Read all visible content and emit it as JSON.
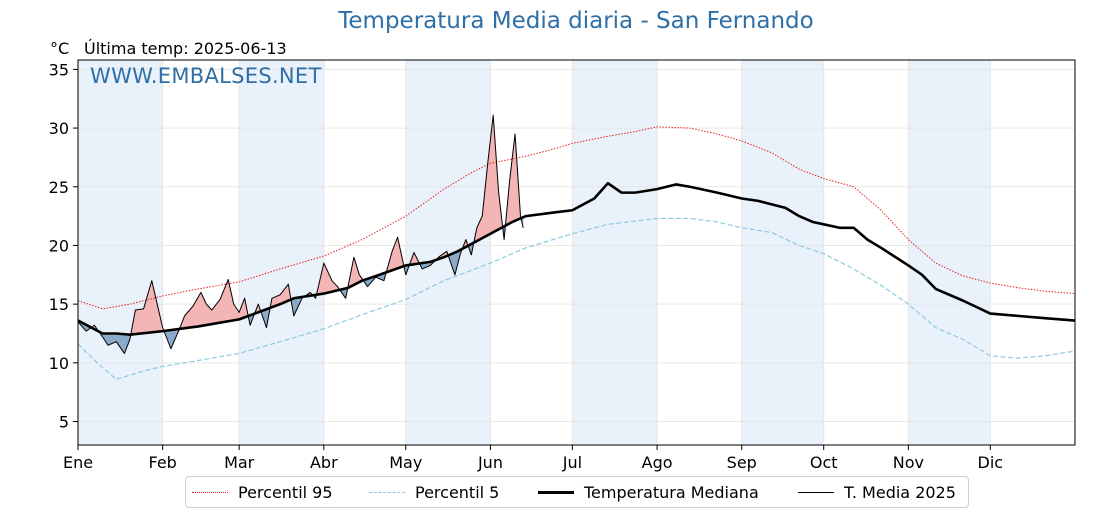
{
  "header": {
    "title": "Temperatura Media diaria - San Fernando",
    "unit": "°C",
    "last_temp": "Última temp: 2025-06-13",
    "watermark": "WWW.EMBALSES.NET"
  },
  "colors": {
    "p95": "#e8231e",
    "p5": "#8fc9e0",
    "median": "#000000",
    "year": "#000000",
    "above_fill": "#f3b5b5",
    "below_fill": "#8aaac9",
    "month_shade": "#e9f1fa",
    "grid": "#e6e6e6",
    "title": "#2f6fa6"
  },
  "chart_data": {
    "type": "line",
    "title": "Temperatura Media diaria - San Fernando",
    "ylabel": "°C",
    "ylim": [
      3,
      35.8
    ],
    "xlim": [
      1,
      366
    ],
    "yticks": [
      5,
      10,
      15,
      20,
      25,
      30,
      35
    ],
    "grid": true,
    "legend_position": "bottom",
    "x_unit": "day of year",
    "months": [
      {
        "label": "Ene",
        "day": 1
      },
      {
        "label": "Feb",
        "day": 32
      },
      {
        "label": "Mar",
        "day": 60
      },
      {
        "label": "Abr",
        "day": 91
      },
      {
        "label": "May",
        "day": 121
      },
      {
        "label": "Jun",
        "day": 152
      },
      {
        "label": "Jul",
        "day": 182
      },
      {
        "label": "Ago",
        "day": 213
      },
      {
        "label": "Sep",
        "day": 244
      },
      {
        "label": "Oct",
        "day": 274
      },
      {
        "label": "Nov",
        "day": 305
      },
      {
        "label": "Dic",
        "day": 335
      }
    ],
    "series": [
      {
        "name": "Percentil 95",
        "style": "dotted",
        "x": [
          1,
          10,
          20,
          32,
          45,
          60,
          75,
          91,
          105,
          121,
          135,
          145,
          152,
          165,
          175,
          182,
          195,
          205,
          213,
          225,
          235,
          244,
          255,
          265,
          274,
          285,
          295,
          305,
          315,
          325,
          335,
          345,
          355,
          366
        ],
        "y": [
          15.3,
          14.6,
          15.0,
          15.7,
          16.3,
          16.9,
          18.0,
          19.1,
          20.5,
          22.5,
          24.8,
          26.2,
          27.0,
          27.6,
          28.2,
          28.7,
          29.3,
          29.7,
          30.1,
          30.0,
          29.5,
          28.9,
          27.9,
          26.5,
          25.7,
          25.0,
          23.0,
          20.5,
          18.5,
          17.4,
          16.8,
          16.4,
          16.1,
          15.9
        ]
      },
      {
        "name": "Percentil 5",
        "style": "dashed",
        "x": [
          1,
          8,
          15,
          25,
          32,
          45,
          60,
          75,
          91,
          105,
          121,
          135,
          152,
          165,
          182,
          195,
          213,
          225,
          235,
          244,
          255,
          265,
          274,
          285,
          295,
          305,
          315,
          325,
          335,
          345,
          355,
          366
        ],
        "y": [
          11.6,
          10.0,
          8.6,
          9.3,
          9.7,
          10.2,
          10.8,
          11.8,
          12.9,
          14.1,
          15.4,
          17.0,
          18.5,
          19.8,
          21.0,
          21.8,
          22.3,
          22.3,
          22.0,
          21.5,
          21.1,
          20.0,
          19.3,
          18.0,
          16.6,
          15.0,
          13.0,
          12.0,
          10.6,
          10.4,
          10.6,
          11.0
        ]
      },
      {
        "name": "Temperatura Mediana",
        "style": "solid-thick",
        "x": [
          1,
          10,
          15,
          20,
          32,
          45,
          60,
          75,
          80,
          91,
          100,
          105,
          115,
          121,
          130,
          135,
          140,
          152,
          160,
          165,
          175,
          182,
          190,
          195,
          200,
          205,
          213,
          220,
          225,
          235,
          244,
          250,
          255,
          260,
          265,
          270,
          274,
          280,
          285,
          290,
          295,
          305,
          310,
          315,
          325,
          335,
          345,
          355,
          366
        ],
        "y": [
          13.6,
          12.5,
          12.5,
          12.4,
          12.7,
          13.1,
          13.7,
          15.0,
          15.5,
          15.9,
          16.4,
          17.0,
          17.8,
          18.3,
          18.6,
          19.0,
          19.5,
          21.0,
          22.0,
          22.5,
          22.8,
          23.0,
          24.0,
          25.3,
          24.5,
          24.5,
          24.8,
          25.2,
          25.0,
          24.5,
          24.0,
          23.8,
          23.5,
          23.2,
          22.5,
          22.0,
          21.8,
          21.5,
          21.5,
          20.5,
          19.8,
          18.3,
          17.5,
          16.3,
          15.3,
          14.2,
          14.0,
          13.8,
          13.6
        ]
      },
      {
        "name": "T. Media 2025",
        "style": "solid-thin",
        "x": [
          1,
          4,
          7,
          10,
          12,
          15,
          18,
          20,
          22,
          25,
          28,
          32,
          35,
          38,
          40,
          43,
          46,
          48,
          50,
          53,
          56,
          58,
          60,
          62,
          64,
          67,
          70,
          72,
          75,
          78,
          80,
          83,
          86,
          88,
          91,
          94,
          96,
          99,
          102,
          104,
          107,
          110,
          113,
          116,
          118,
          121,
          124,
          127,
          130,
          133,
          136,
          139,
          141,
          143,
          145,
          147,
          149,
          151,
          153,
          155,
          157,
          159,
          161,
          163,
          164
        ],
        "y": [
          13.5,
          12.7,
          13.2,
          12.2,
          11.5,
          11.8,
          10.8,
          12.0,
          14.5,
          14.6,
          17.0,
          13.0,
          11.2,
          12.8,
          14.0,
          14.8,
          16.0,
          15.0,
          14.5,
          15.4,
          17.1,
          15.0,
          14.3,
          15.5,
          13.2,
          15.0,
          13.0,
          15.5,
          15.8,
          16.7,
          14.0,
          15.5,
          16.0,
          15.5,
          18.5,
          17.0,
          16.5,
          15.5,
          19.0,
          17.5,
          16.5,
          17.3,
          17.0,
          19.5,
          20.7,
          17.5,
          19.4,
          18.0,
          18.3,
          19.0,
          19.5,
          17.5,
          19.3,
          20.5,
          19.2,
          21.5,
          22.5,
          27.0,
          31.1,
          24.5,
          20.5,
          25.5,
          29.5,
          22.5,
          21.5
        ]
      }
    ],
    "legend": [
      "Percentil 95",
      "Percentil 5",
      "Temperatura Mediana",
      "T. Media 2025"
    ]
  }
}
